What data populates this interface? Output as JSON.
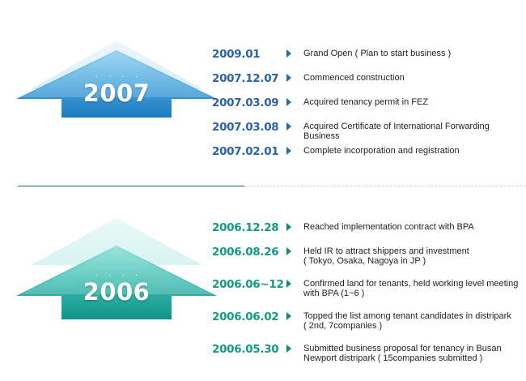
{
  "timeline": [
    {
      "year": "2007",
      "colors": {
        "date": "#2a63a8",
        "arrow_top": "#7cc4ec",
        "arrow_bottom": "#1e7fc2"
      },
      "events": [
        {
          "date": "2009.01",
          "text": "Grand Open ( Plan to start business )"
        },
        {
          "date": "2007.12.07",
          "text": "Commenced construction"
        },
        {
          "date": "2007.03.09",
          "text": "Acquired tenancy permit in FEZ"
        },
        {
          "date": "2007.03.08",
          "text": "Acquired Certificate of International Forwarding Business"
        },
        {
          "date": "2007.02.01",
          "text": "Complete incorporation and registration"
        }
      ]
    },
    {
      "year": "2006",
      "colors": {
        "date": "#139a86",
        "arrow_top": "#6fd6cc",
        "arrow_bottom": "#12948a"
      },
      "events": [
        {
          "date": "2006.12.28",
          "text": "Reached implementation contract with  BPA"
        },
        {
          "date": "2006.08.26",
          "text": "Held IR to attract shippers and investment\n( Tokyo, Osaka, Nagoya in JP )"
        },
        {
          "date": "2006.06~12",
          "text": "Confirmed land for tenants, held working level meeting\nwith BPA (1~6 )"
        },
        {
          "date": "2006.06.02",
          "text": "Topped the list among tenant candidates in distripark\n( 2nd, 7companies )"
        },
        {
          "date": "2006.05.30",
          "text": "Submitted business proposal for tenancy in Busan\nNewport distripark ( 15companies submitted )"
        }
      ]
    }
  ]
}
